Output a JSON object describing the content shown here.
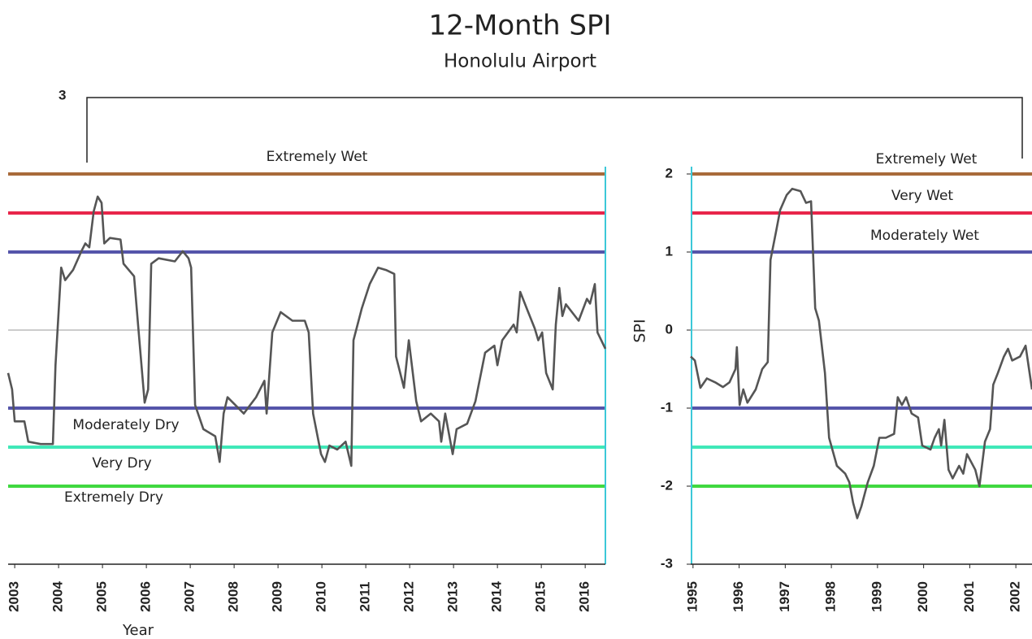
{
  "header": {
    "title": "12-Month SPI",
    "subtitle": "Honolulu Airport",
    "frame_label": "3",
    "y_label": "SPI",
    "x_label": "Year"
  },
  "chart_data": [
    {
      "type": "line",
      "xlim": [
        2002.85,
        2016.46
      ],
      "ylim": [
        -3,
        2
      ],
      "xticks": [
        2003,
        2004,
        2005,
        2006,
        2007,
        2008,
        2009,
        2010,
        2011,
        2012,
        2013,
        2014,
        2015,
        2016
      ],
      "thresholds": [
        {
          "value": 2,
          "color": "#a86a3a"
        },
        {
          "value": 1.5,
          "color": "#e8254a"
        },
        {
          "value": 1,
          "color": "#5555aa"
        },
        {
          "value": 0,
          "color": "#999999"
        },
        {
          "value": -1,
          "color": "#5555aa"
        },
        {
          "value": -1.5,
          "color": "#40e8b8"
        },
        {
          "value": -2,
          "color": "#40d840"
        }
      ],
      "annotations": [
        "Extremely Wet",
        "Moderately Dry",
        "Very Dry",
        "Extremely Dry"
      ],
      "series": [
        {
          "color": "#555555",
          "x": [
            2002.85,
            2002.94,
            2003.0,
            2003.22,
            2003.31,
            2003.59,
            2003.87,
            2003.93,
            2004.06,
            2004.15,
            2004.33,
            2004.52,
            2004.61,
            2004.7,
            2004.8,
            2004.89,
            2004.98,
            2005.04,
            2005.17,
            2005.41,
            2005.48,
            2005.72,
            2005.81,
            2005.96,
            2006.04,
            2006.11,
            2006.28,
            2006.65,
            2006.83,
            2006.96,
            2007.02,
            2007.11,
            2007.3,
            2007.57,
            2007.67,
            2007.76,
            2007.85,
            2008.22,
            2008.5,
            2008.69,
            2008.74,
            2008.87,
            2009.06,
            2009.33,
            2009.61,
            2009.7,
            2009.8,
            2009.98,
            2010.07,
            2010.17,
            2010.35,
            2010.54,
            2010.67,
            2010.72,
            2010.91,
            2011.09,
            2011.28,
            2011.46,
            2011.65,
            2011.69,
            2011.87,
            2011.98,
            2012.15,
            2012.26,
            2012.48,
            2012.67,
            2012.72,
            2012.81,
            2012.98,
            2013.07,
            2013.31,
            2013.5,
            2013.72,
            2013.93,
            2014.0,
            2014.11,
            2014.37,
            2014.44,
            2014.52,
            2014.7,
            2014.85,
            2014.93,
            2015.02,
            2015.11,
            2015.26,
            2015.33,
            2015.41,
            2015.48,
            2015.56,
            2015.85,
            2016.04,
            2016.11,
            2016.22,
            2016.28,
            2016.46
          ],
          "values": [
            -0.55,
            -0.76,
            -1.17,
            -1.17,
            -1.43,
            -1.46,
            -1.46,
            -0.45,
            0.8,
            0.64,
            0.77,
            1.01,
            1.11,
            1.06,
            1.52,
            1.71,
            1.63,
            1.11,
            1.18,
            1.16,
            0.85,
            0.69,
            0.07,
            -0.93,
            -0.76,
            0.85,
            0.92,
            0.88,
            1.01,
            0.92,
            0.8,
            -0.96,
            -1.27,
            -1.36,
            -1.69,
            -1.07,
            -0.86,
            -1.07,
            -0.86,
            -0.65,
            -1.07,
            -0.03,
            0.23,
            0.12,
            0.12,
            -0.03,
            -1.07,
            -1.59,
            -1.69,
            -1.48,
            -1.53,
            -1.43,
            -1.74,
            -0.13,
            0.28,
            0.59,
            0.8,
            0.77,
            0.72,
            -0.34,
            -0.74,
            -0.13,
            -0.91,
            -1.17,
            -1.07,
            -1.17,
            -1.43,
            -1.07,
            -1.59,
            -1.27,
            -1.2,
            -0.91,
            -0.29,
            -0.2,
            -0.45,
            -0.13,
            0.07,
            -0.03,
            0.49,
            0.23,
            0.02,
            -0.13,
            -0.03,
            -0.55,
            -0.76,
            0.07,
            0.54,
            0.18,
            0.33,
            0.12,
            0.4,
            0.34,
            0.59,
            -0.03,
            -0.24
          ]
        }
      ]
    },
    {
      "type": "line",
      "xlim": [
        1994.95,
        2002.35
      ],
      "ylim": [
        -3,
        2
      ],
      "xticks": [
        1995,
        1996,
        1997,
        1998,
        1999,
        2000,
        2001,
        2002
      ],
      "yticks": [
        2,
        1,
        0,
        -1,
        -2,
        -3
      ],
      "thresholds": [
        {
          "value": 2,
          "color": "#a86a3a"
        },
        {
          "value": 1.5,
          "color": "#e8254a"
        },
        {
          "value": 1,
          "color": "#5555aa"
        },
        {
          "value": 0,
          "color": "#999999"
        },
        {
          "value": -1,
          "color": "#5555aa"
        },
        {
          "value": -1.5,
          "color": "#40e8b8"
        },
        {
          "value": -2,
          "color": "#40d840"
        }
      ],
      "annotations": [
        "Extremely Wet",
        "Very Wet",
        "Moderately Wet"
      ],
      "series": [
        {
          "color": "#555555",
          "x": [
            1994.95,
            1995.04,
            1995.16,
            1995.3,
            1995.48,
            1995.65,
            1995.79,
            1995.92,
            1995.95,
            1996.01,
            1996.09,
            1996.18,
            1996.36,
            1996.5,
            1996.62,
            1996.68,
            1996.8,
            1996.89,
            1997.03,
            1997.15,
            1997.33,
            1997.45,
            1997.56,
            1997.65,
            1997.73,
            1997.86,
            1997.95,
            1998.12,
            1998.3,
            1998.39,
            1998.47,
            1998.56,
            1998.65,
            1998.79,
            1998.92,
            1999.04,
            1999.18,
            1999.36,
            1999.44,
            1999.53,
            1999.62,
            1999.74,
            1999.88,
            1999.97,
            2000.15,
            2000.24,
            2000.33,
            2000.38,
            2000.45,
            2000.54,
            2000.63,
            2000.77,
            2000.86,
            2000.94,
            2001.12,
            2001.21,
            2001.33,
            2001.44,
            2001.51,
            2001.61,
            2001.74,
            2001.83,
            2001.92,
            2002.09,
            2002.21,
            2002.35
          ],
          "values": [
            -0.34,
            -0.39,
            -0.74,
            -0.62,
            -0.67,
            -0.73,
            -0.67,
            -0.5,
            -0.22,
            -0.96,
            -0.76,
            -0.93,
            -0.76,
            -0.5,
            -0.41,
            0.9,
            1.26,
            1.54,
            1.73,
            1.81,
            1.78,
            1.63,
            1.65,
            0.28,
            0.12,
            -0.55,
            -1.38,
            -1.74,
            -1.84,
            -1.95,
            -2.21,
            -2.41,
            -2.26,
            -1.95,
            -1.74,
            -1.38,
            -1.38,
            -1.33,
            -0.86,
            -0.96,
            -0.86,
            -1.07,
            -1.12,
            -1.48,
            -1.53,
            -1.38,
            -1.27,
            -1.48,
            -1.15,
            -1.79,
            -1.9,
            -1.74,
            -1.84,
            -1.59,
            -1.79,
            -2.0,
            -1.43,
            -1.27,
            -0.7,
            -0.55,
            -0.34,
            -0.24,
            -0.39,
            -0.34,
            -0.2,
            -0.76
          ]
        }
      ]
    }
  ]
}
